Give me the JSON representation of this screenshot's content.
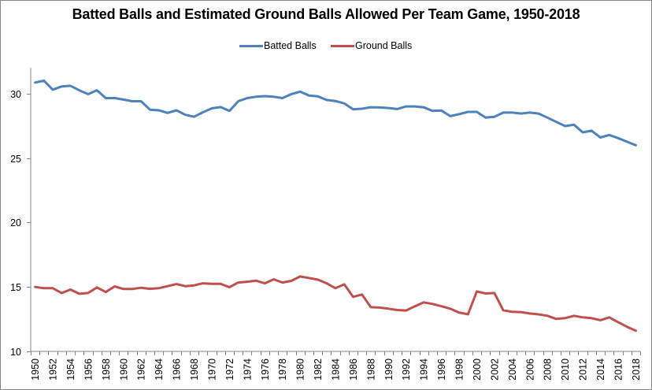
{
  "chart_data": {
    "type": "line",
    "title": "Batted Balls and Estimated Ground Balls Allowed Per Team Game, 1950-2018",
    "xlabel": "",
    "ylabel": "",
    "ylim": [
      10,
      32
    ],
    "yticks": [
      10,
      15,
      20,
      25,
      30
    ],
    "legend_position": "top",
    "grid": false,
    "x": [
      1950,
      1951,
      1952,
      1953,
      1954,
      1955,
      1956,
      1957,
      1958,
      1959,
      1960,
      1961,
      1962,
      1963,
      1964,
      1965,
      1966,
      1967,
      1968,
      1969,
      1970,
      1971,
      1972,
      1973,
      1974,
      1975,
      1976,
      1977,
      1978,
      1979,
      1980,
      1981,
      1982,
      1983,
      1984,
      1985,
      1986,
      1987,
      1988,
      1989,
      1990,
      1991,
      1992,
      1993,
      1994,
      1995,
      1996,
      1997,
      1998,
      1999,
      2000,
      2001,
      2002,
      2003,
      2004,
      2005,
      2006,
      2007,
      2008,
      2009,
      2010,
      2011,
      2012,
      2013,
      2014,
      2015,
      2016,
      2017,
      2018
    ],
    "xtick_labels": [
      "1950",
      "1952",
      "1954",
      "1956",
      "1958",
      "1960",
      "1962",
      "1964",
      "1966",
      "1968",
      "1970",
      "1972",
      "1974",
      "1976",
      "1978",
      "1980",
      "1982",
      "1984",
      "1986",
      "1988",
      "1990",
      "1992",
      "1994",
      "1996",
      "1998",
      "2000",
      "2002",
      "2004",
      "2006",
      "2008",
      "2010",
      "2012",
      "2014",
      "2016",
      "2018"
    ],
    "series": [
      {
        "name": "Batted Balls",
        "color": "#4F81BD",
        "values": [
          30.85,
          31.0,
          30.3,
          30.55,
          30.6,
          30.25,
          29.95,
          30.25,
          29.65,
          29.65,
          29.53,
          29.4,
          29.4,
          28.75,
          28.7,
          28.5,
          28.7,
          28.35,
          28.2,
          28.55,
          28.85,
          28.95,
          28.65,
          29.4,
          29.65,
          29.75,
          29.8,
          29.75,
          29.65,
          29.95,
          30.15,
          29.85,
          29.78,
          29.5,
          29.42,
          29.23,
          28.78,
          28.82,
          28.94,
          28.92,
          28.88,
          28.8,
          29.0,
          29.0,
          28.93,
          28.65,
          28.68,
          28.25,
          28.4,
          28.58,
          28.58,
          28.13,
          28.2,
          28.52,
          28.52,
          28.45,
          28.52,
          28.45,
          28.13,
          27.8,
          27.48,
          27.58,
          26.99,
          27.12,
          26.59,
          26.79,
          26.54,
          26.26,
          25.99
        ]
      },
      {
        "name": "Ground Balls",
        "color": "#C0504D",
        "values": [
          15.0,
          14.9,
          14.9,
          14.53,
          14.8,
          14.47,
          14.53,
          14.96,
          14.6,
          15.04,
          14.84,
          14.84,
          14.94,
          14.85,
          14.9,
          15.06,
          15.22,
          15.06,
          15.12,
          15.28,
          15.24,
          15.24,
          14.98,
          15.34,
          15.4,
          15.49,
          15.28,
          15.59,
          15.34,
          15.47,
          15.81,
          15.69,
          15.57,
          15.28,
          14.9,
          15.2,
          14.23,
          14.41,
          13.43,
          13.4,
          13.31,
          13.21,
          13.17,
          13.5,
          13.8,
          13.68,
          13.5,
          13.31,
          13.01,
          12.88,
          14.65,
          14.49,
          14.53,
          13.19,
          13.07,
          13.05,
          12.94,
          12.87,
          12.76,
          12.52,
          12.58,
          12.76,
          12.64,
          12.58,
          12.42,
          12.64,
          12.27,
          11.91,
          11.6
        ]
      }
    ]
  }
}
